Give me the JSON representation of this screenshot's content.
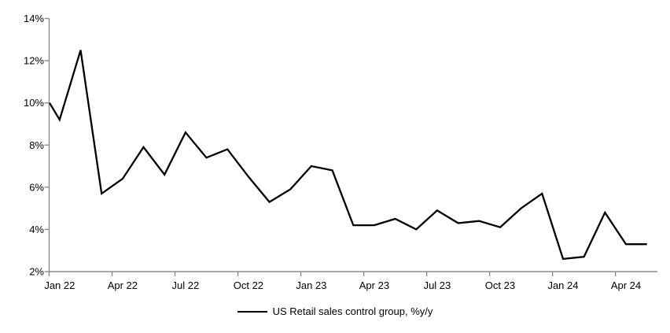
{
  "chart_data": {
    "type": "line",
    "title": "",
    "xlabel": "",
    "ylabel": "",
    "legend_label": "US Retail sales control group, %y/y",
    "legend_position": "bottom-center",
    "grid": false,
    "ylim": [
      2,
      14
    ],
    "y_ticks": [
      2,
      4,
      6,
      8,
      10,
      12,
      14
    ],
    "y_tick_labels": [
      "2%",
      "4%",
      "6%",
      "8%",
      "10%",
      "12%",
      "14%"
    ],
    "x_tick_labels": [
      "Jan 22",
      "Apr 22",
      "Jul 22",
      "Oct 22",
      "Jan 23",
      "Apr 23",
      "Jul 23",
      "Oct 23",
      "Jan 24",
      "Apr 24"
    ],
    "x_label_every_n_categories": 3,
    "categories": [
      "Jan 22",
      "Feb 22",
      "Mar 22",
      "Apr 22",
      "May 22",
      "Jun 22",
      "Jul 22",
      "Aug 22",
      "Sep 22",
      "Oct 22",
      "Nov 22",
      "Dec 22",
      "Jan 23",
      "Feb 23",
      "Mar 23",
      "Apr 23",
      "May 23",
      "Jun 23",
      "Jul 23",
      "Aug 23",
      "Sep 23",
      "Oct 23",
      "Nov 23",
      "Dec 23",
      "Jan 24",
      "Feb 24",
      "Mar 24",
      "Apr 24",
      "May 24"
    ],
    "series": [
      {
        "name": "US Retail sales control group, %y/y",
        "values": [
          9.2,
          12.5,
          5.7,
          6.4,
          7.9,
          6.6,
          8.6,
          7.4,
          7.8,
          6.5,
          5.3,
          5.9,
          7.0,
          6.8,
          4.2,
          4.2,
          4.5,
          4.0,
          4.9,
          4.3,
          4.4,
          4.1,
          5.0,
          5.7,
          2.6,
          2.7,
          4.8,
          3.3,
          3.3
        ]
      }
    ],
    "leading_edge": {
      "note": "line enters plot clipped at left axis",
      "value_at_left_edge": 10.0
    },
    "colors": {
      "line": "#000000",
      "axis": "#8c8c8c",
      "text": "#000000",
      "background": "#ffffff"
    }
  }
}
